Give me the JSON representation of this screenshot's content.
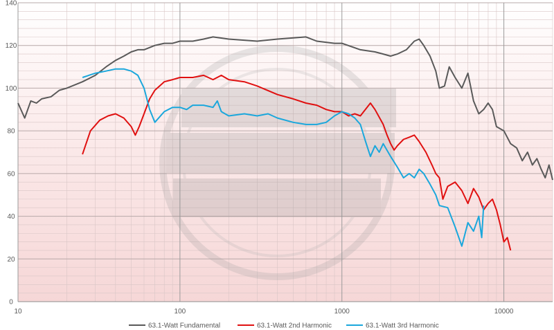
{
  "chart_data": {
    "type": "line",
    "title": "",
    "xlabel": "",
    "ylabel": "",
    "xscale": "log",
    "xlim": [
      10,
      20000
    ],
    "ylim": [
      0,
      140
    ],
    "x_ticks": [
      {
        "value": 10,
        "label": "10"
      },
      {
        "value": 100,
        "label": "100"
      },
      {
        "value": 1000,
        "label": "1000"
      },
      {
        "value": 10000,
        "label": "10000"
      }
    ],
    "y_ticks": [
      {
        "value": 0,
        "label": "0"
      },
      {
        "value": 20,
        "label": "20"
      },
      {
        "value": 40,
        "label": "40"
      },
      {
        "value": 60,
        "label": "60"
      },
      {
        "value": 80,
        "label": "80"
      },
      {
        "value": 100,
        "label": "100"
      },
      {
        "value": 120,
        "label": "120"
      },
      {
        "value": 140,
        "label": "140"
      }
    ],
    "grid": true,
    "legend_position": "bottom",
    "series": [
      {
        "name": "63.1-Watt Fundamental",
        "color": "#595959",
        "points": [
          [
            10,
            93
          ],
          [
            11,
            86
          ],
          [
            12,
            94
          ],
          [
            13,
            93
          ],
          [
            14,
            95
          ],
          [
            16,
            96
          ],
          [
            18,
            99
          ],
          [
            20,
            100
          ],
          [
            25,
            103
          ],
          [
            30,
            106
          ],
          [
            35,
            110
          ],
          [
            40,
            113
          ],
          [
            45,
            115
          ],
          [
            50,
            117
          ],
          [
            55,
            118
          ],
          [
            60,
            118
          ],
          [
            70,
            120
          ],
          [
            80,
            121
          ],
          [
            90,
            121
          ],
          [
            100,
            122
          ],
          [
            120,
            122
          ],
          [
            140,
            123
          ],
          [
            160,
            124
          ],
          [
            200,
            123
          ],
          [
            300,
            122
          ],
          [
            400,
            123
          ],
          [
            600,
            124
          ],
          [
            700,
            122
          ],
          [
            900,
            121
          ],
          [
            1000,
            121
          ],
          [
            1300,
            118
          ],
          [
            1600,
            117
          ],
          [
            1800,
            116
          ],
          [
            2000,
            115
          ],
          [
            2200,
            116
          ],
          [
            2500,
            118
          ],
          [
            2800,
            122
          ],
          [
            3000,
            123
          ],
          [
            3200,
            120
          ],
          [
            3500,
            115
          ],
          [
            3800,
            108
          ],
          [
            4000,
            100
          ],
          [
            4300,
            101
          ],
          [
            4600,
            110
          ],
          [
            5000,
            105
          ],
          [
            5500,
            100
          ],
          [
            6000,
            107
          ],
          [
            6500,
            94
          ],
          [
            7000,
            88
          ],
          [
            7500,
            90
          ],
          [
            8000,
            93
          ],
          [
            8500,
            90
          ],
          [
            9000,
            82
          ],
          [
            10000,
            80
          ],
          [
            11000,
            74
          ],
          [
            12000,
            72
          ],
          [
            13000,
            66
          ],
          [
            14000,
            70
          ],
          [
            15000,
            64
          ],
          [
            16000,
            67
          ],
          [
            17000,
            62
          ],
          [
            18000,
            58
          ],
          [
            19000,
            64
          ],
          [
            20000,
            57
          ]
        ]
      },
      {
        "name": "63.1-Watt 2nd Harmonic",
        "color": "#e01010",
        "points": [
          [
            25,
            69
          ],
          [
            28,
            80
          ],
          [
            32,
            85
          ],
          [
            36,
            87
          ],
          [
            40,
            88
          ],
          [
            45,
            86
          ],
          [
            50,
            82
          ],
          [
            53,
            78
          ],
          [
            56,
            82
          ],
          [
            60,
            88
          ],
          [
            65,
            95
          ],
          [
            70,
            99
          ],
          [
            80,
            103
          ],
          [
            90,
            104
          ],
          [
            100,
            105
          ],
          [
            120,
            105
          ],
          [
            140,
            106
          ],
          [
            160,
            104
          ],
          [
            180,
            106
          ],
          [
            200,
            104
          ],
          [
            250,
            103
          ],
          [
            300,
            101
          ],
          [
            400,
            97
          ],
          [
            500,
            95
          ],
          [
            600,
            93
          ],
          [
            700,
            92
          ],
          [
            800,
            90
          ],
          [
            900,
            89
          ],
          [
            1000,
            89
          ],
          [
            1100,
            87
          ],
          [
            1200,
            88
          ],
          [
            1300,
            87
          ],
          [
            1500,
            93
          ],
          [
            1600,
            90
          ],
          [
            1800,
            83
          ],
          [
            1900,
            78
          ],
          [
            2000,
            74
          ],
          [
            2100,
            71
          ],
          [
            2200,
            73
          ],
          [
            2400,
            76
          ],
          [
            2600,
            77
          ],
          [
            2800,
            78
          ],
          [
            3000,
            75
          ],
          [
            3300,
            70
          ],
          [
            3600,
            64
          ],
          [
            3800,
            60
          ],
          [
            4000,
            58
          ],
          [
            4200,
            48
          ],
          [
            4500,
            54
          ],
          [
            5000,
            56
          ],
          [
            5500,
            52
          ],
          [
            6000,
            46
          ],
          [
            6500,
            53
          ],
          [
            7000,
            49
          ],
          [
            7500,
            43
          ],
          [
            8000,
            46
          ],
          [
            8500,
            48
          ],
          [
            9000,
            43
          ],
          [
            9500,
            36
          ],
          [
            10000,
            28
          ],
          [
            10500,
            30
          ],
          [
            11000,
            24
          ]
        ]
      },
      {
        "name": "63.1-Watt 3rd Harmonic",
        "color": "#1aa7dc",
        "points": [
          [
            25,
            105
          ],
          [
            30,
            107
          ],
          [
            35,
            108
          ],
          [
            40,
            109
          ],
          [
            45,
            109
          ],
          [
            50,
            108
          ],
          [
            55,
            106
          ],
          [
            60,
            100
          ],
          [
            65,
            90
          ],
          [
            70,
            84
          ],
          [
            80,
            89
          ],
          [
            90,
            91
          ],
          [
            100,
            91
          ],
          [
            110,
            90
          ],
          [
            120,
            92
          ],
          [
            140,
            92
          ],
          [
            160,
            91
          ],
          [
            170,
            94
          ],
          [
            180,
            89
          ],
          [
            200,
            87
          ],
          [
            250,
            88
          ],
          [
            300,
            87
          ],
          [
            350,
            88
          ],
          [
            400,
            86
          ],
          [
            500,
            84
          ],
          [
            600,
            83
          ],
          [
            700,
            83
          ],
          [
            800,
            84
          ],
          [
            900,
            87
          ],
          [
            1000,
            89
          ],
          [
            1100,
            88
          ],
          [
            1200,
            86
          ],
          [
            1300,
            83
          ],
          [
            1400,
            75
          ],
          [
            1500,
            68
          ],
          [
            1600,
            73
          ],
          [
            1700,
            70
          ],
          [
            1800,
            74
          ],
          [
            2000,
            68
          ],
          [
            2200,
            63
          ],
          [
            2400,
            58
          ],
          [
            2600,
            60
          ],
          [
            2800,
            58
          ],
          [
            3000,
            62
          ],
          [
            3200,
            60
          ],
          [
            3500,
            55
          ],
          [
            3800,
            50
          ],
          [
            4000,
            45
          ],
          [
            4500,
            44
          ],
          [
            5000,
            35
          ],
          [
            5500,
            26
          ],
          [
            6000,
            37
          ],
          [
            6500,
            33
          ],
          [
            7000,
            40
          ],
          [
            7300,
            30
          ],
          [
            7500,
            45
          ]
        ]
      }
    ]
  }
}
